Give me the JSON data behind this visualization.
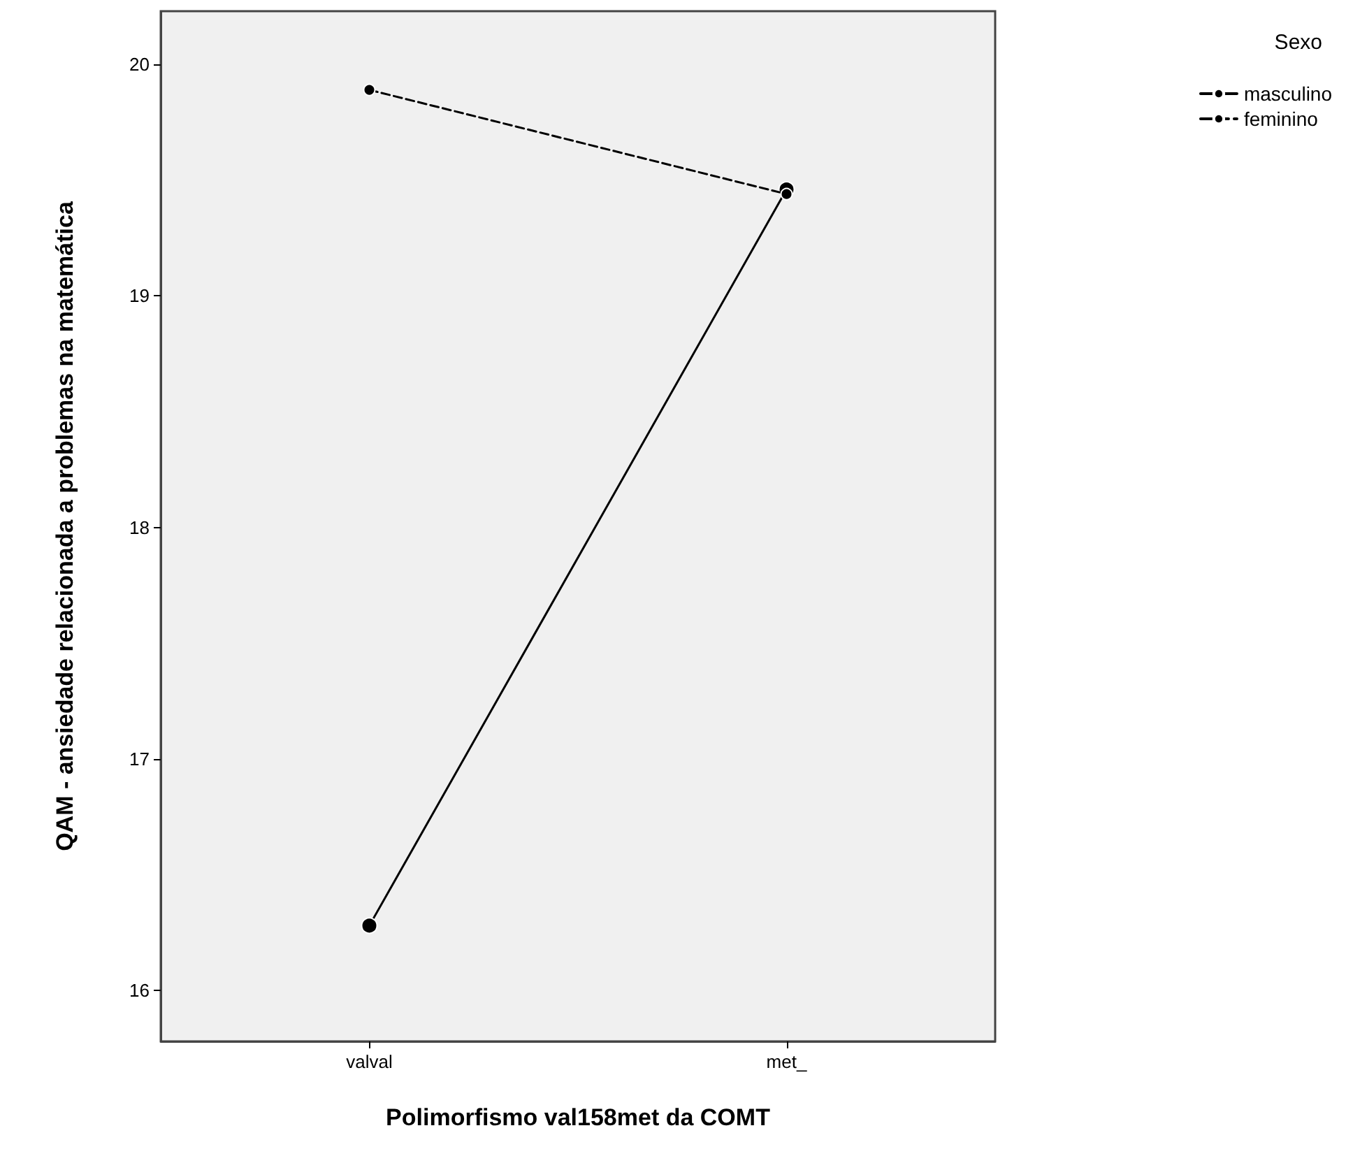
{
  "chart_data": {
    "type": "line",
    "xlabel": "Polimorfismo val158met da COMT",
    "ylabel": "QAM - ansiedade relacionada a problemas na matemática",
    "legend_title": "Sexo",
    "categories": [
      "valval",
      "met_"
    ],
    "series": [
      {
        "name": "masculino",
        "color": "#000000",
        "values": [
          16.28,
          19.46
        ],
        "line_style": "solid"
      },
      {
        "name": "feminino",
        "color": "#000000",
        "values": [
          19.89,
          19.44
        ],
        "line_style": "dashed"
      }
    ],
    "ylim": [
      15.78,
      20.23
    ],
    "yticks": [
      16,
      17,
      18,
      19,
      20
    ],
    "grid": false,
    "legend": "top right",
    "marker": "circle"
  }
}
